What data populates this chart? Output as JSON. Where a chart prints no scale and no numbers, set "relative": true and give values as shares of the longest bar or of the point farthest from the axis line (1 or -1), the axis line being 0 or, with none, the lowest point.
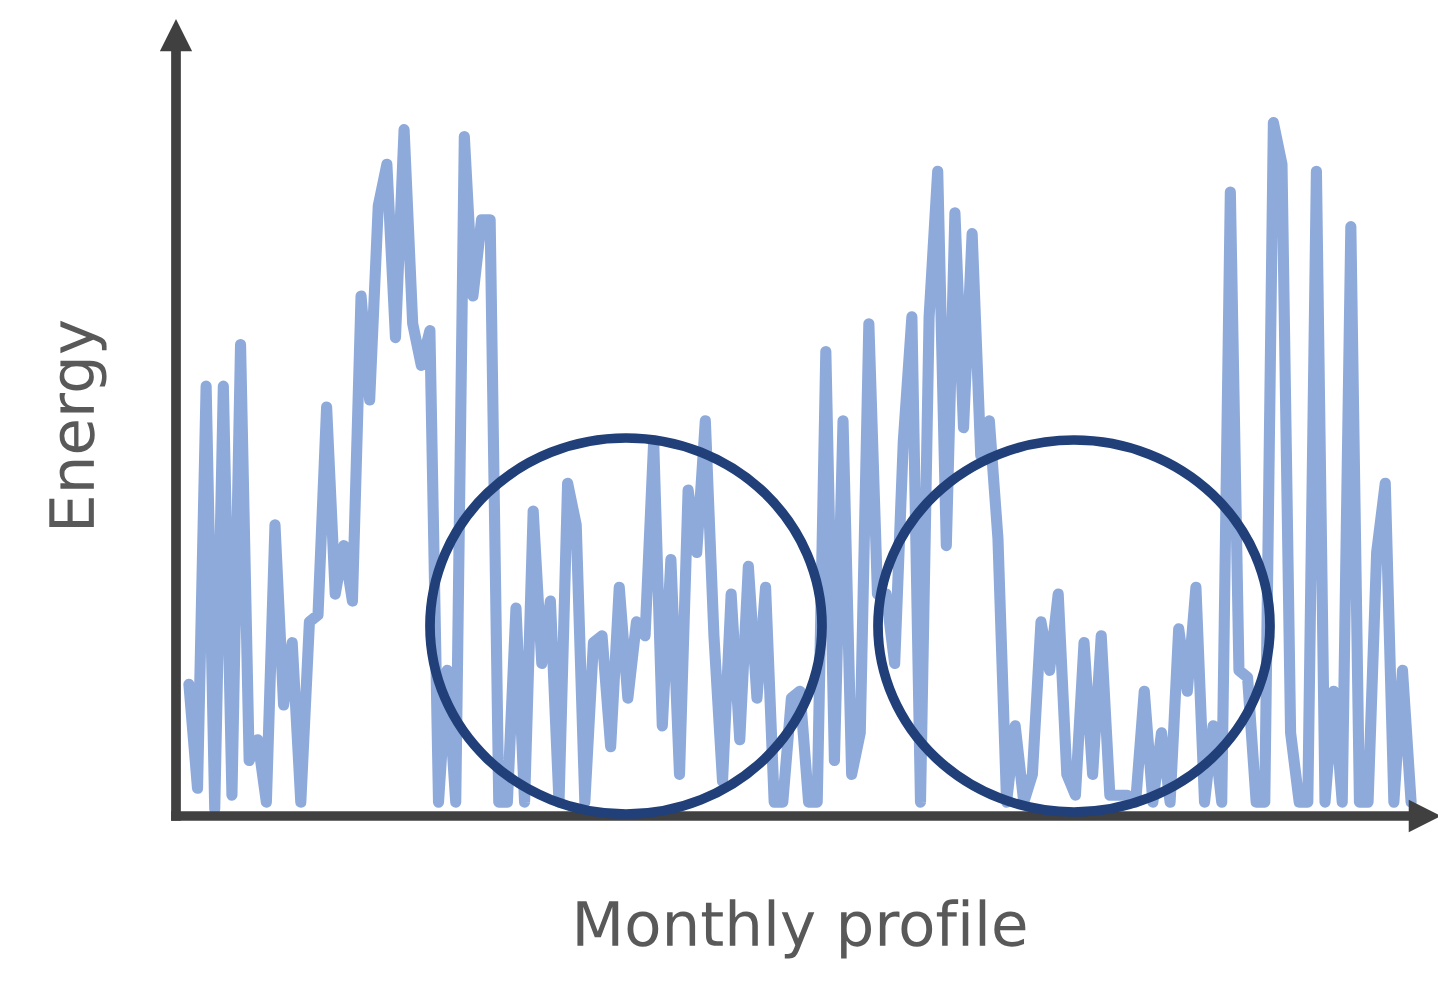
{
  "chart_data": {
    "type": "line",
    "relative": true,
    "xlabel": "Monthly profile",
    "ylabel": "Energy",
    "marker": "none",
    "line_style": "solid",
    "categories": [
      null,
      null,
      null,
      null,
      null,
      null,
      null,
      null,
      null,
      null,
      null,
      null,
      null,
      null,
      null,
      null,
      null,
      null,
      null,
      null,
      null,
      null,
      null,
      null,
      null,
      null,
      null,
      null,
      null,
      null,
      null,
      null,
      null,
      null,
      null,
      null,
      null,
      null,
      null,
      null,
      null,
      null,
      null,
      null,
      null,
      null,
      null,
      null,
      null,
      null,
      null,
      null,
      null,
      null,
      null,
      null,
      null,
      null,
      null,
      null,
      null,
      null,
      null,
      null,
      null,
      null,
      null,
      null,
      null,
      null,
      null,
      null,
      null,
      null,
      null,
      null,
      null,
      null,
      null,
      null,
      null,
      null,
      null,
      null,
      null,
      null,
      null,
      null,
      null,
      null,
      null,
      null,
      null,
      null,
      null,
      null,
      null,
      null,
      null,
      null,
      null,
      null,
      null,
      null,
      null,
      null,
      null,
      null,
      null,
      null,
      null,
      null,
      null,
      null,
      null,
      null,
      null,
      null,
      null,
      null,
      null,
      null,
      null,
      null,
      null,
      null,
      null,
      null,
      null,
      null,
      null,
      null,
      null,
      null,
      null,
      null,
      null,
      null,
      null,
      null,
      null,
      null,
      null
    ],
    "series": [
      {
        "color": "#8eaadb",
        "values": [
          0.19,
          0.04,
          0.62,
          0.01,
          0.62,
          0.03,
          0.68,
          0.08,
          0.11,
          0.02,
          0.42,
          0.16,
          0.25,
          0.02,
          0.28,
          0.29,
          0.59,
          0.32,
          0.39,
          0.31,
          0.75,
          0.6,
          0.88,
          0.94,
          0.69,
          0.99,
          0.71,
          0.65,
          0.7,
          0.02,
          0.21,
          0.02,
          0.98,
          0.75,
          0.86,
          0.86,
          0.02,
          0.02,
          0.3,
          0.02,
          0.44,
          0.22,
          0.31,
          0.02,
          0.48,
          0.42,
          0.02,
          0.25,
          0.26,
          0.1,
          0.33,
          0.17,
          0.28,
          0.26,
          0.54,
          0.13,
          0.37,
          0.06,
          0.47,
          0.38,
          0.57,
          0.26,
          0.05,
          0.32,
          0.11,
          0.36,
          0.17,
          0.33,
          0.02,
          0.02,
          0.17,
          0.18,
          0.02,
          0.02,
          0.67,
          0.08,
          0.57,
          0.06,
          0.12,
          0.71,
          0.32,
          0.32,
          0.22,
          0.54,
          0.72,
          0.02,
          0.72,
          0.93,
          0.39,
          0.87,
          0.56,
          0.84,
          0.52,
          0.57,
          0.4,
          0.02,
          0.13,
          0.02,
          0.06,
          0.28,
          0.21,
          0.32,
          0.06,
          0.03,
          0.25,
          0.06,
          0.26,
          0.03,
          0.03,
          0.03,
          0.02,
          0.18,
          0.02,
          0.12,
          0.02,
          0.27,
          0.18,
          0.33,
          0.02,
          0.13,
          0.02,
          0.9,
          0.21,
          0.2,
          0.02,
          0.02,
          1.0,
          0.94,
          0.12,
          0.02,
          0.02,
          0.93,
          0.02,
          0.18,
          0.02,
          0.85,
          0.02,
          0.02,
          0.38,
          0.48,
          0.02,
          0.21,
          0.02
        ]
      }
    ]
  }
}
